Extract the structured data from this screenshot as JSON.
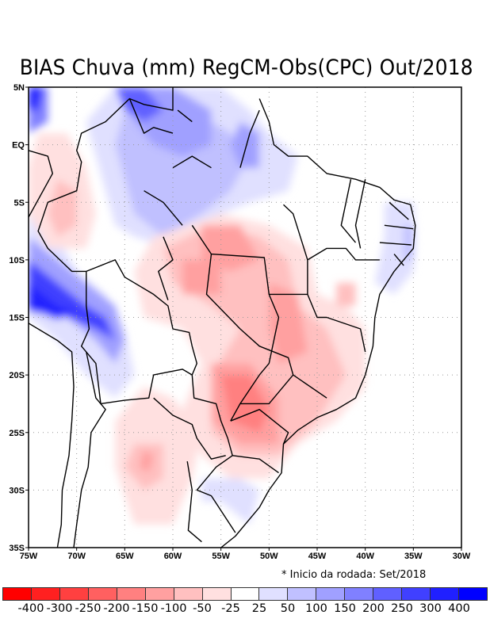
{
  "title": "BIAS Chuva (mm) RegCM-Obs(CPC) Out/2018",
  "note": "* Inicio da rodada: Set/2018",
  "chart_data": {
    "type": "heatmap",
    "title": "BIAS Chuva (mm) RegCM-Obs(CPC) Out/2018",
    "xlabel": "",
    "ylabel": "",
    "xlim": [
      -75,
      -30
    ],
    "ylim": [
      -35,
      5
    ],
    "grid": true,
    "x_ticks": [
      "75W",
      "70W",
      "65W",
      "60W",
      "55W",
      "50W",
      "45W",
      "40W",
      "35W",
      "30W"
    ],
    "y_ticks": [
      "5N",
      "EQ",
      "5S",
      "10S",
      "15S",
      "20S",
      "25S",
      "30S",
      "35S"
    ],
    "colorbar": {
      "labels": [
        "-400",
        "-300",
        "-250",
        "-200",
        "-150",
        "-100",
        "-50",
        "-25",
        "25",
        "50",
        "100",
        "150",
        "200",
        "250",
        "300",
        "400"
      ],
      "colors": [
        "#ff0000",
        "#ff2020",
        "#ff4040",
        "#ff6060",
        "#ff8080",
        "#ffa0a0",
        "#ffc0c0",
        "#ffe0e0",
        "#ffffff",
        "#e0e0ff",
        "#c0c0ff",
        "#a0a0ff",
        "#8080ff",
        "#6060ff",
        "#4040ff",
        "#2020ff",
        "#0000ff"
      ],
      "placement": "bottom"
    },
    "features": [
      {
        "name": "wet-bias-northwest-amazon",
        "lon": -67,
        "lat": -2,
        "level": 100
      },
      {
        "name": "wet-bias-north-roraima",
        "lon": -64,
        "lat": 3,
        "level": 250
      },
      {
        "name": "wet-bias-andes-bolivia",
        "lon": -70,
        "lat": -13,
        "level": 300
      },
      {
        "name": "dry-bias-para-mato-grosso",
        "lon": -54,
        "lat": -8,
        "level": -150
      },
      {
        "name": "dry-bias-mato-grosso-do-sul-parana",
        "lon": -53,
        "lat": -22,
        "level": -200
      },
      {
        "name": "dry-bias-goias-minas",
        "lon": -47,
        "lat": -17,
        "level": -100
      },
      {
        "name": "dry-bias-peru-west",
        "lon": -72,
        "lat": -5,
        "level": -50
      },
      {
        "name": "dry-bias-argentina-north",
        "lon": -63,
        "lat": -28,
        "level": -100
      },
      {
        "name": "wet-bias-northeast-coast",
        "lon": -36,
        "lat": -9,
        "level": 50
      },
      {
        "name": "wet-bias-south-uruguay",
        "lon": -56,
        "lat": -30,
        "level": 50
      }
    ]
  }
}
